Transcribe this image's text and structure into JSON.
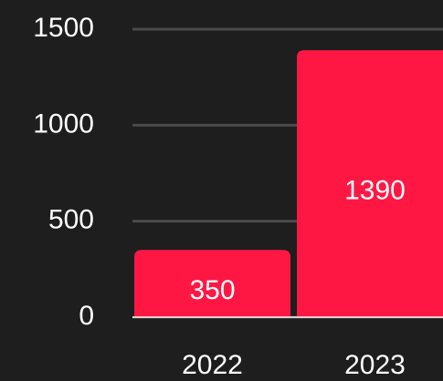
{
  "chart_data": {
    "type": "bar",
    "categories": [
      "2022",
      "2023"
    ],
    "values": [
      350,
      1390
    ],
    "color": "#ff1744",
    "ylim": [
      0,
      1500
    ],
    "yticks": [
      0,
      500,
      1000,
      1500
    ],
    "grid": true
  }
}
